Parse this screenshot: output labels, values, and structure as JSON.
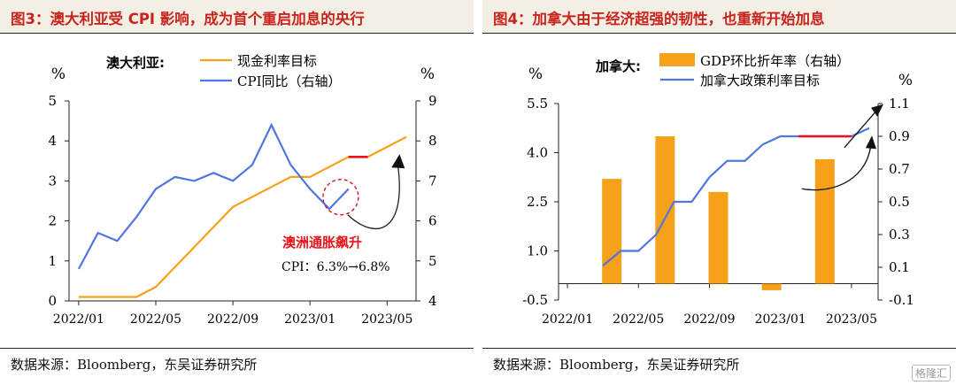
{
  "source_text": "数据来源：Bloomberg，东吴证券研究所",
  "chart_data": [
    {
      "type": "line",
      "title": "图3：澳大利亚受 CPI 影响，成为首个重启加息的央行",
      "legend_title": "澳大利亚:",
      "y_unit_left": "%",
      "y_unit_right": "%",
      "ylim_left": [
        0,
        5
      ],
      "ylim_right": [
        4,
        9
      ],
      "y_ticks_left": [
        "0",
        "1",
        "2",
        "3",
        "4",
        "5"
      ],
      "y_ticks_right": [
        "4",
        "5",
        "6",
        "7",
        "8",
        "9"
      ],
      "x_ticks": [
        "2022/01",
        "2022/05",
        "2022/09",
        "2023/01",
        "2023/05"
      ],
      "x_tick_positions": [
        0,
        4,
        8,
        12,
        16
      ],
      "xlim": [
        -0.5,
        17.5
      ],
      "colors": {
        "rate": "#f7a11a",
        "cpi": "#4f76e0",
        "highlight": "#e8141a"
      },
      "series": [
        {
          "name": "现金利率目标",
          "axis": "left",
          "x": [
            0,
            1,
            2,
            3,
            4,
            5,
            6,
            7,
            8,
            9,
            10,
            11,
            12,
            13,
            14,
            15,
            16,
            17
          ],
          "values": [
            0.1,
            0.1,
            0.1,
            0.1,
            0.35,
            0.85,
            1.35,
            1.85,
            2.35,
            2.6,
            2.85,
            3.1,
            3.1,
            3.35,
            3.6,
            3.6,
            3.85,
            4.1
          ]
        },
        {
          "name": "CPI同比（右轴）",
          "axis": "right",
          "x": [
            0,
            1,
            2,
            3,
            4,
            5,
            6,
            7,
            8,
            9,
            10,
            11,
            12,
            13,
            14,
            15
          ],
          "values": [
            4.8,
            5.7,
            5.5,
            6.1,
            6.8,
            7.1,
            7.0,
            7.2,
            7.0,
            7.4,
            8.4,
            7.4,
            6.8,
            6.3,
            6.8,
            null
          ]
        }
      ],
      "annotations": {
        "headline": "澳洲通胀飙升",
        "detail": "CPI：6.3%→6.8%"
      }
    },
    {
      "type": "bar+line",
      "title": "图4：加拿大由于经济超强的韧性，也重新开始加息",
      "legend_title": "加拿大:",
      "y_unit_left": "%",
      "y_unit_right": "%",
      "ylim_left": [
        -0.5,
        5.5
      ],
      "ylim_right": [
        -0.1,
        1.1
      ],
      "y_ticks_left": [
        "-0.5",
        "1.0",
        "2.5",
        "4.0",
        "5.5"
      ],
      "y_ticks_right": [
        "-0.1",
        "0.1",
        "0.3",
        "0.5",
        "0.7",
        "0.9",
        "1.1"
      ],
      "x_ticks": [
        "2022/01",
        "2022/05",
        "2022/09",
        "2023/01",
        "2023/05"
      ],
      "x_tick_positions": [
        0,
        4,
        8,
        12,
        16
      ],
      "xlim": [
        -0.5,
        17.5
      ],
      "colors": {
        "gdp": "#f7a11a",
        "rate": "#4f76e0",
        "highlight": "#e8141a"
      },
      "series": [
        {
          "name": "GDP环比折年率（右轴）",
          "kind": "bar",
          "axis": "left",
          "x": [
            2.5,
            5.5,
            8.5,
            11.5,
            14.5
          ],
          "values": [
            3.2,
            4.5,
            2.8,
            -0.2,
            3.8
          ]
        },
        {
          "name": "加拿大政策利率目标",
          "kind": "line",
          "axis": "right",
          "x": [
            2,
            3,
            4,
            5,
            6,
            7,
            8,
            9,
            10,
            11,
            12,
            13,
            14,
            15,
            16,
            17
          ],
          "values": [
            0.11,
            0.2,
            0.2,
            0.3,
            0.5,
            0.5,
            0.65,
            0.75,
            0.75,
            0.85,
            0.9,
            0.9,
            0.9,
            0.9,
            0.9,
            0.95
          ]
        }
      ]
    }
  ],
  "watermark_text": "格隆汇"
}
